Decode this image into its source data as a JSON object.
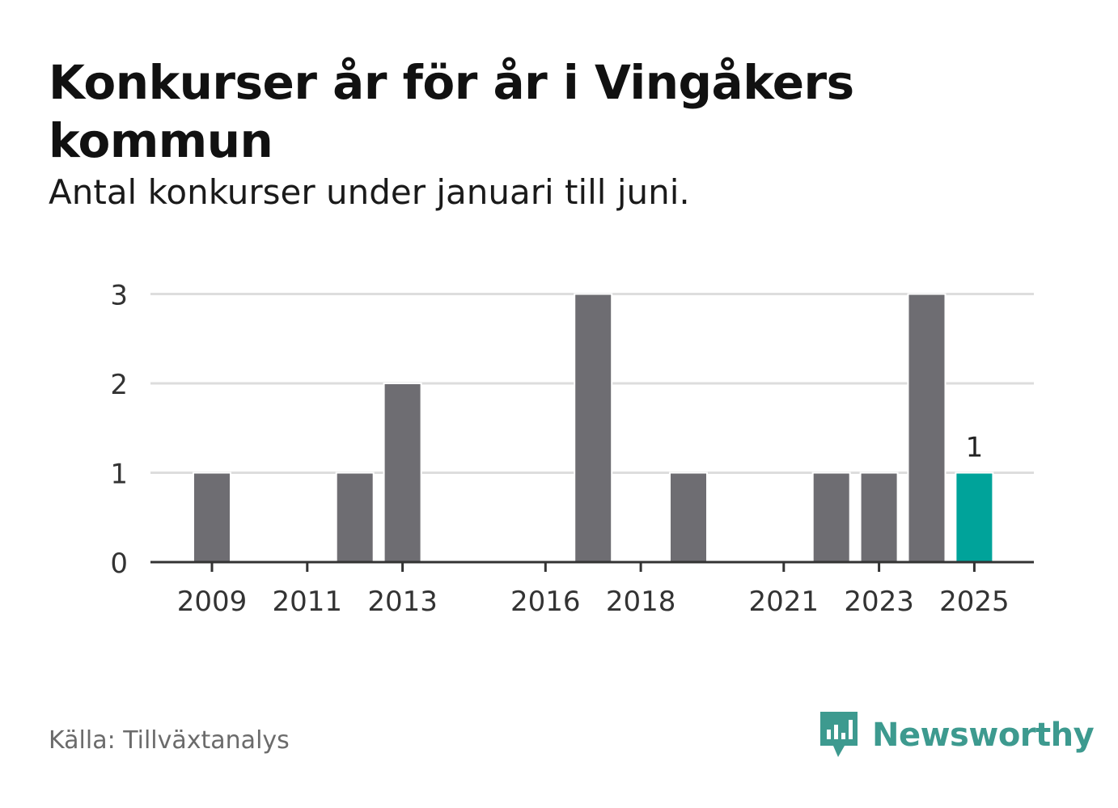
{
  "title": "Konkurser år för år i Vingåkers kommun",
  "subtitle": "Antal konkurser under januari till juni.",
  "source": "Källa: Tillväxtanalys",
  "brand": "Newsworthy",
  "colors": {
    "bar": "#6e6d72",
    "highlight": "#00a39a",
    "grid": "#dddddd",
    "axis": "#333333",
    "brand": "#3d9a8f"
  },
  "chart_data": {
    "type": "bar",
    "title": "Konkurser år för år i Vingåkers kommun",
    "xlabel": "",
    "ylabel": "",
    "ylim": [
      0,
      3
    ],
    "yticks": [
      "0",
      "1",
      "2",
      "3"
    ],
    "categories": [
      "2009",
      "2010",
      "2011",
      "2012",
      "2013",
      "2014",
      "2015",
      "2016",
      "2017",
      "2018",
      "2019",
      "2020",
      "2021",
      "2022",
      "2023",
      "2024",
      "2025"
    ],
    "values": [
      1,
      0,
      0,
      1,
      2,
      0,
      0,
      0,
      3,
      0,
      1,
      0,
      0,
      1,
      1,
      3,
      1
    ],
    "xtick_labels": [
      "2009",
      "2011",
      "2013",
      "2016",
      "2018",
      "2021",
      "2023",
      "2025"
    ],
    "highlight": "2025",
    "highlight_label": "1"
  }
}
